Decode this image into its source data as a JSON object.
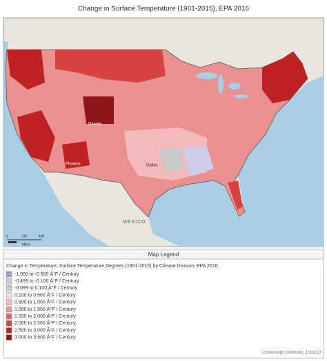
{
  "title": "Change in Surface Temperature (1901-2015), EPA 2016",
  "map": {
    "labels": [
      "Denver",
      "Phoenix",
      "Dallas",
      "MEXICO"
    ],
    "scale": {
      "ticks": [
        0,
        230,
        460
      ],
      "unit": "Miles"
    }
  },
  "legend": {
    "header": "Map Legend",
    "subtitle": "Change in Temperature, Surface Temperature Degrees (1901-2015) by Climate Division, EPA 2016",
    "items": [
      {
        "label": "-1.000 to -0.500 Â°F / Century",
        "color": "#9c9cc9"
      },
      {
        "label": "-0.499 to -0.100 Â°F / Century",
        "color": "#cdcde8"
      },
      {
        "label": "-0.099 to 0.100 Â°F / Century",
        "color": "#c9c9c9"
      },
      {
        "label": "0.100 to 0.500 Â°F / Century",
        "color": "#f7d9d9"
      },
      {
        "label": "0.500 to 1.000 Â°F / Century",
        "color": "#f2baba"
      },
      {
        "label": "1.000 to 1.500 Â°F / Century",
        "color": "#ec9292"
      },
      {
        "label": "1.500 to 2.000 Â°F / Century",
        "color": "#e36a6a"
      },
      {
        "label": "2.000 to 2.500 Â°F / Century",
        "color": "#d84242"
      },
      {
        "label": "2.500 to 3.000 Â°F / Century",
        "color": "#be2222"
      },
      {
        "label": "3.000 to 3.500 Â°F / Century",
        "color": "#8e1818"
      }
    ]
  },
  "footer": "Community Commons, 1/3/2017"
}
